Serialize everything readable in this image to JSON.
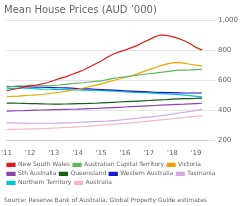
{
  "chart_data": {
    "type": "line",
    "title": "Mean House Prices (AUD ’000)",
    "source": "Source: Reserve Bank of Australia, Global Property Guide estimates",
    "x": [
      2011,
      2011.25,
      2011.5,
      2011.75,
      2012,
      2012.25,
      2012.5,
      2012.75,
      2013,
      2013.25,
      2013.5,
      2013.75,
      2014,
      2014.25,
      2014.5,
      2014.75,
      2015,
      2015.25,
      2015.5,
      2015.75,
      2016,
      2016.25,
      2016.5,
      2016.75,
      2017,
      2017.25,
      2017.5,
      2017.75,
      2018,
      2018.25,
      2018.5,
      2018.75,
      2019,
      2019.25
    ],
    "series": [
      {
        "name": "New South Wales",
        "color": "#e8191c",
        "values": [
          530,
          538,
          545,
          555,
          562,
          568,
          575,
          585,
          598,
          612,
          622,
          638,
          652,
          668,
          688,
          708,
          728,
          752,
          772,
          788,
          800,
          815,
          830,
          850,
          868,
          888,
          900,
          898,
          890,
          878,
          862,
          842,
          818,
          800
        ]
      },
      {
        "name": "Australian Capital Territory",
        "color": "#5cb85c",
        "values": [
          560,
          558,
          560,
          562,
          565,
          563,
          562,
          563,
          565,
          568,
          572,
          577,
          580,
          583,
          588,
          592,
          596,
          604,
          612,
          618,
          622,
          628,
          633,
          638,
          643,
          647,
          652,
          657,
          662,
          667,
          667,
          668,
          670,
          672
        ]
      },
      {
        "name": "Victoria",
        "color": "#f0a500",
        "values": [
          490,
          492,
          494,
          497,
          500,
          502,
          505,
          510,
          515,
          520,
          526,
          533,
          540,
          548,
          557,
          566,
          576,
          587,
          598,
          608,
          618,
          628,
          640,
          655,
          670,
          682,
          697,
          707,
          715,
          718,
          712,
          706,
          700,
          695
        ]
      },
      {
        "name": "Sth Australia",
        "color": "#8e44ad",
        "values": [
          395,
          396,
          397,
          398,
          400,
          401,
          402,
          403,
          404,
          405,
          406,
          407,
          408,
          410,
          411,
          412,
          414,
          416,
          418,
          420,
          422,
          424,
          426,
          428,
          430,
          432,
          434,
          436,
          438,
          440,
          441,
          443,
          445,
          447
        ]
      },
      {
        "name": "Queensland",
        "color": "#1a5c1a",
        "values": [
          448,
          448,
          447,
          446,
          445,
          444,
          443,
          442,
          441,
          441,
          442,
          443,
          444,
          445,
          446,
          447,
          449,
          451,
          453,
          455,
          457,
          459,
          461,
          463,
          465,
          467,
          469,
          471,
          474,
          476,
          477,
          478,
          479,
          481
        ]
      },
      {
        "name": "Western Australia",
        "color": "#1a1acd",
        "values": [
          556,
          558,
          559,
          557,
          555,
          554,
          553,
          552,
          551,
          550,
          549,
          547,
          545,
          543,
          542,
          540,
          538,
          536,
          534,
          532,
          530,
          528,
          526,
          524,
          522,
          520,
          519,
          518,
          517,
          516,
          515,
          515,
          515,
          515
        ]
      },
      {
        "name": "Tasmania",
        "color": "#d4a8e0",
        "values": [
          316,
          316,
          315,
          315,
          314,
          314,
          314,
          314,
          314,
          315,
          316,
          317,
          319,
          321,
          323,
          325,
          327,
          329,
          332,
          335,
          339,
          343,
          347,
          351,
          355,
          359,
          364,
          369,
          375,
          381,
          387,
          393,
          400,
          406
        ]
      },
      {
        "name": "Northern Territory",
        "color": "#00c8cc",
        "values": [
          543,
          546,
          548,
          547,
          545,
          543,
          541,
          540,
          539,
          538,
          537,
          536,
          535,
          534,
          533,
          532,
          531,
          529,
          527,
          525,
          523,
          521,
          519,
          517,
          515,
          513,
          511,
          509,
          507,
          504,
          501,
          497,
          493,
          489
        ]
      },
      {
        "name": "Australia",
        "color": "#f0b8c8",
        "values": [
          272,
          273,
          274,
          275,
          276,
          277,
          279,
          280,
          282,
          284,
          286,
          288,
          290,
          292,
          295,
          298,
          301,
          304,
          307,
          310,
          313,
          316,
          320,
          324,
          328,
          332,
          336,
          340,
          344,
          348,
          352,
          356,
          360,
          364
        ]
      }
    ],
    "xlim": [
      2011,
      2019.5
    ],
    "xticks": [
      {
        "value": 2011,
        "label": "'11"
      },
      {
        "value": 2012,
        "label": "'12"
      },
      {
        "value": 2013,
        "label": "'13"
      },
      {
        "value": 2014,
        "label": "'14"
      },
      {
        "value": 2015,
        "label": "'15"
      },
      {
        "value": 2016,
        "label": "'16"
      },
      {
        "value": 2017,
        "label": "'17"
      },
      {
        "value": 2018,
        "label": "'18"
      },
      {
        "value": 2019,
        "label": "'19"
      }
    ],
    "ylim": [
      200,
      1000
    ],
    "yticks": [
      200,
      400,
      600,
      800,
      {
        "value": 1000,
        "label": "1,000"
      }
    ],
    "grid": "y",
    "legend": "bottom"
  }
}
